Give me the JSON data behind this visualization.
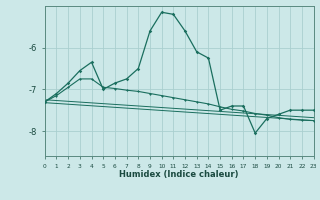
{
  "xlabel": "Humidex (Indice chaleur)",
  "bg_color": "#cce8e8",
  "grid_color": "#aacfcf",
  "line_color": "#1a6e5e",
  "x_min": 0,
  "x_max": 23,
  "y_min": -8.6,
  "y_max": -5.0,
  "yticks": [
    -8,
    -7,
    -6
  ],
  "xticks": [
    0,
    1,
    2,
    3,
    4,
    5,
    6,
    7,
    8,
    9,
    10,
    11,
    12,
    13,
    14,
    15,
    16,
    17,
    18,
    19,
    20,
    21,
    22,
    23
  ],
  "series1_x": [
    0,
    1,
    2,
    3,
    4,
    5,
    6,
    7,
    8,
    9,
    10,
    11,
    12,
    13,
    14,
    15,
    16,
    17,
    18,
    19,
    20,
    21,
    22,
    23
  ],
  "series1_y": [
    -7.3,
    -7.1,
    -6.85,
    -6.55,
    -6.35,
    -7.0,
    -6.85,
    -6.75,
    -6.5,
    -5.6,
    -5.15,
    -5.2,
    -5.6,
    -6.1,
    -6.25,
    -7.5,
    -7.4,
    -7.4,
    -8.05,
    -7.7,
    -7.6,
    -7.5,
    -7.5,
    -7.5
  ],
  "series2_x": [
    0,
    1,
    2,
    3,
    4,
    5,
    6,
    7,
    8,
    9,
    10,
    11,
    12,
    13,
    14,
    15,
    16,
    17,
    18,
    19,
    20,
    21,
    22,
    23
  ],
  "series2_y": [
    -7.3,
    -7.15,
    -6.95,
    -6.75,
    -6.75,
    -6.95,
    -6.98,
    -7.02,
    -7.05,
    -7.1,
    -7.15,
    -7.2,
    -7.25,
    -7.3,
    -7.35,
    -7.42,
    -7.48,
    -7.52,
    -7.58,
    -7.62,
    -7.68,
    -7.72,
    -7.74,
    -7.75
  ],
  "trend1_x0": 0,
  "trend1_x1": 23,
  "trend1_y0": -7.25,
  "trend1_y1": -7.68,
  "trend2_x0": 0,
  "trend2_x1": 23,
  "trend2_y0": -7.32,
  "trend2_y1": -7.75
}
